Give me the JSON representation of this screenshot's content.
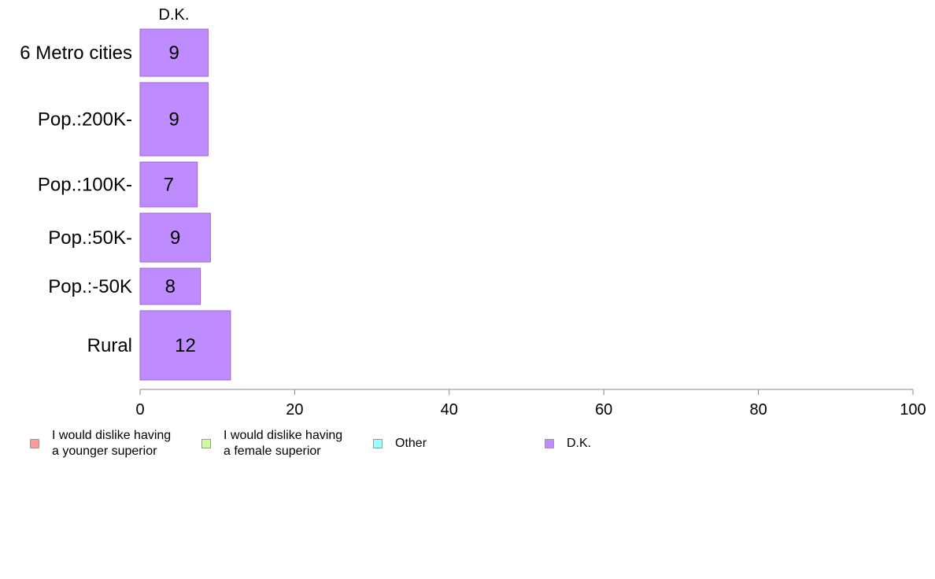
{
  "chart_data": {
    "type": "bar",
    "orientation": "horizontal",
    "stacked": true,
    "categories": [
      "6 Metro cities",
      "Pop.:200K-",
      "Pop.:100K-",
      "Pop.:50K-",
      "Pop.:-50K",
      "Rural"
    ],
    "series": [
      {
        "name": "I would dislike having\na younger superior",
        "color": "#ff9999",
        "values": [
          0,
          0,
          0,
          0,
          0,
          0
        ]
      },
      {
        "name": "I would dislike having\na female superior",
        "color": "#ccff99",
        "values": [
          0,
          0,
          0,
          0,
          0,
          0
        ]
      },
      {
        "name": "Other",
        "color": "#99ffff",
        "values": [
          0,
          0,
          0,
          0,
          0,
          0
        ]
      },
      {
        "name": "D.K.",
        "color": "#bf8cff",
        "values": [
          8.8,
          8.8,
          7.4,
          9.1,
          7.8,
          11.7
        ]
      }
    ],
    "data_labels": [
      "9",
      "9",
      "7",
      "9",
      "8",
      "12"
    ],
    "series_header": "D.K.",
    "xlim": [
      0,
      100
    ],
    "x_ticks": [
      "0",
      "20",
      "40",
      "60",
      "80",
      "100"
    ],
    "legend_position": "bottom"
  }
}
